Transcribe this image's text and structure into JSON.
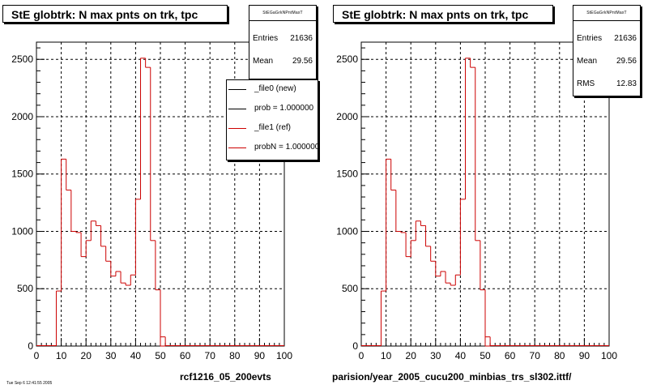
{
  "tiny_footer": "Tue Sep  6 12:41:55 2005",
  "chart_data": [
    {
      "type": "bar",
      "title": "StE globtrk: N max pnts on trk, tpc",
      "stats": {
        "name": "StEGaGrkNPntMaxT",
        "entries_label": "Entries",
        "entries": "21636",
        "mean_label": "Mean",
        "mean": "29.56"
      },
      "legend": [
        {
          "label": "_file0 (new)",
          "color": "#000000"
        },
        {
          "label": "prob = 1.000000",
          "color": "#000000"
        },
        {
          "label": "_file1 (ref)",
          "color": "#cc0000"
        },
        {
          "label": "probN = 1.000000",
          "color": "#cc0000"
        }
      ],
      "xlabel": "rcf1216_05_200evts",
      "xlim": [
        0,
        100
      ],
      "ylim": [
        0,
        2650
      ],
      "xticks": [
        "0",
        "10",
        "20",
        "30",
        "40",
        "50",
        "60",
        "70",
        "80",
        "90",
        "100"
      ],
      "yticks": [
        "0",
        "500",
        "1000",
        "1500",
        "2000",
        "2500"
      ],
      "bin_width": 2,
      "x": [
        8,
        10,
        12,
        14,
        16,
        18,
        20,
        22,
        24,
        26,
        28,
        30,
        32,
        34,
        36,
        38,
        40,
        42,
        44,
        46,
        48,
        50
      ],
      "values": [
        480,
        1630,
        1360,
        1000,
        990,
        780,
        920,
        1090,
        1050,
        870,
        740,
        610,
        650,
        550,
        530,
        620,
        1280,
        2510,
        2430,
        920,
        490,
        0
      ],
      "series_colors": [
        "#cc0000"
      ]
    },
    {
      "type": "bar",
      "title": "StE globtrk: N max pnts on trk, tpc",
      "stats": {
        "name": "StEGaGrkNPntMaxT",
        "entries_label": "Entries",
        "entries": "21636",
        "mean_label": "Mean",
        "mean": "29.56",
        "rms_label": "RMS",
        "rms": "12.83"
      },
      "xlabel": "parision/year_2005_cucu200_minbias_trs_sl302.ittf/",
      "xlim": [
        0,
        100
      ],
      "ylim": [
        0,
        2650
      ],
      "xticks": [
        "0",
        "10",
        "20",
        "30",
        "40",
        "50",
        "60",
        "70",
        "80",
        "90",
        "100"
      ],
      "yticks": [
        "0",
        "500",
        "1000",
        "1500",
        "2000",
        "2500"
      ],
      "bin_width": 2,
      "x": [
        8,
        10,
        12,
        14,
        16,
        18,
        20,
        22,
        24,
        26,
        28,
        30,
        32,
        34,
        36,
        38,
        40,
        42,
        44,
        46,
        48,
        50
      ],
      "values": [
        480,
        1630,
        1360,
        1000,
        990,
        780,
        920,
        1090,
        1050,
        870,
        740,
        610,
        650,
        550,
        530,
        620,
        1280,
        2510,
        2430,
        920,
        490,
        0
      ],
      "series_colors": [
        "#cc0000"
      ]
    }
  ]
}
